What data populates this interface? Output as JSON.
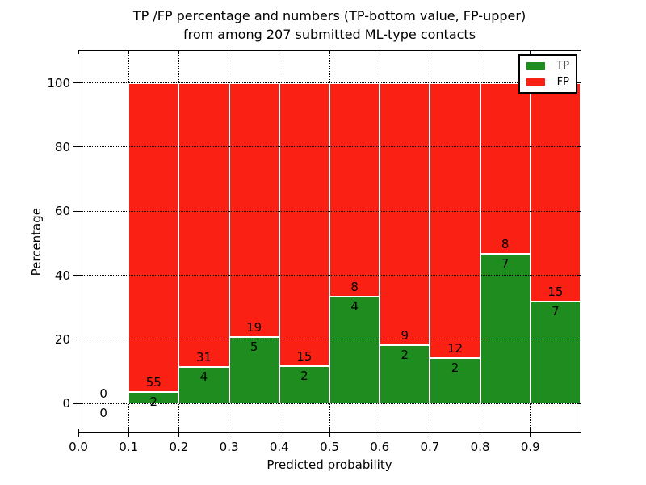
{
  "figure": {
    "title_line1": "TP /FP percentage and numbers (TP-bottom value, FP-upper)",
    "title_line2": "from among 207 submitted ML-type contacts"
  },
  "axes": {
    "xlabel": "Predicted probability",
    "ylabel": "Percentage",
    "x_ticks": [
      {
        "value": 0.0,
        "label": "0.0"
      },
      {
        "value": 0.1,
        "label": "0.1"
      },
      {
        "value": 0.2,
        "label": "0.2"
      },
      {
        "value": 0.3,
        "label": "0.3"
      },
      {
        "value": 0.4,
        "label": "0.4"
      },
      {
        "value": 0.5,
        "label": "0.5"
      },
      {
        "value": 0.6,
        "label": "0.6"
      },
      {
        "value": 0.7,
        "label": "0.7"
      },
      {
        "value": 0.8,
        "label": "0.8"
      },
      {
        "value": 0.9,
        "label": "0.9"
      }
    ],
    "y_ticks": [
      {
        "value": 0,
        "label": "0"
      },
      {
        "value": 20,
        "label": "20"
      },
      {
        "value": 40,
        "label": "40"
      },
      {
        "value": 60,
        "label": "60"
      },
      {
        "value": 80,
        "label": "80"
      },
      {
        "value": 100,
        "label": "100"
      }
    ]
  },
  "legend": {
    "items": [
      {
        "label": "TP",
        "color": "#1f8c1f"
      },
      {
        "label": "FP",
        "color": "#fa2014"
      }
    ]
  },
  "chart_data": {
    "type": "bar",
    "stacked": true,
    "title": "TP /FP percentage and numbers (TP-bottom value, FP-upper) from among 207 submitted ML-type contacts",
    "xlabel": "Predicted probability",
    "ylabel": "Percentage",
    "xlim": [
      0.0,
      1.0
    ],
    "ylim": [
      -9,
      110
    ],
    "grid": true,
    "legend_position": "upper right",
    "total_submitted_contacts": 207,
    "series": [
      {
        "name": "TP",
        "color": "#1f8c1f",
        "position": "bottom"
      },
      {
        "name": "FP",
        "color": "#fa2014",
        "position": "top"
      }
    ],
    "bins": [
      {
        "x0": 0.0,
        "x1": 0.1,
        "tp": 0,
        "fp": 0,
        "tp_pct": 0.0
      },
      {
        "x0": 0.1,
        "x1": 0.2,
        "tp": 2,
        "fp": 55,
        "tp_pct": 3.5
      },
      {
        "x0": 0.2,
        "x1": 0.3,
        "tp": 4,
        "fp": 31,
        "tp_pct": 11.4
      },
      {
        "x0": 0.3,
        "x1": 0.4,
        "tp": 5,
        "fp": 19,
        "tp_pct": 20.8
      },
      {
        "x0": 0.4,
        "x1": 0.5,
        "tp": 2,
        "fp": 15,
        "tp_pct": 11.8
      },
      {
        "x0": 0.5,
        "x1": 0.6,
        "tp": 4,
        "fp": 8,
        "tp_pct": 33.3
      },
      {
        "x0": 0.6,
        "x1": 0.7,
        "tp": 2,
        "fp": 9,
        "tp_pct": 18.2
      },
      {
        "x0": 0.7,
        "x1": 0.8,
        "tp": 2,
        "fp": 12,
        "tp_pct": 14.3
      },
      {
        "x0": 0.8,
        "x1": 0.9,
        "tp": 7,
        "fp": 8,
        "tp_pct": 46.7
      },
      {
        "x0": 0.9,
        "x1": 1.0,
        "tp": 7,
        "fp": 15,
        "tp_pct": 31.8
      }
    ]
  },
  "colors": {
    "tp": "#1f8c1f",
    "fp": "#fa2014",
    "grid": "#000000",
    "frame": "#000000",
    "background": "#ffffff"
  }
}
